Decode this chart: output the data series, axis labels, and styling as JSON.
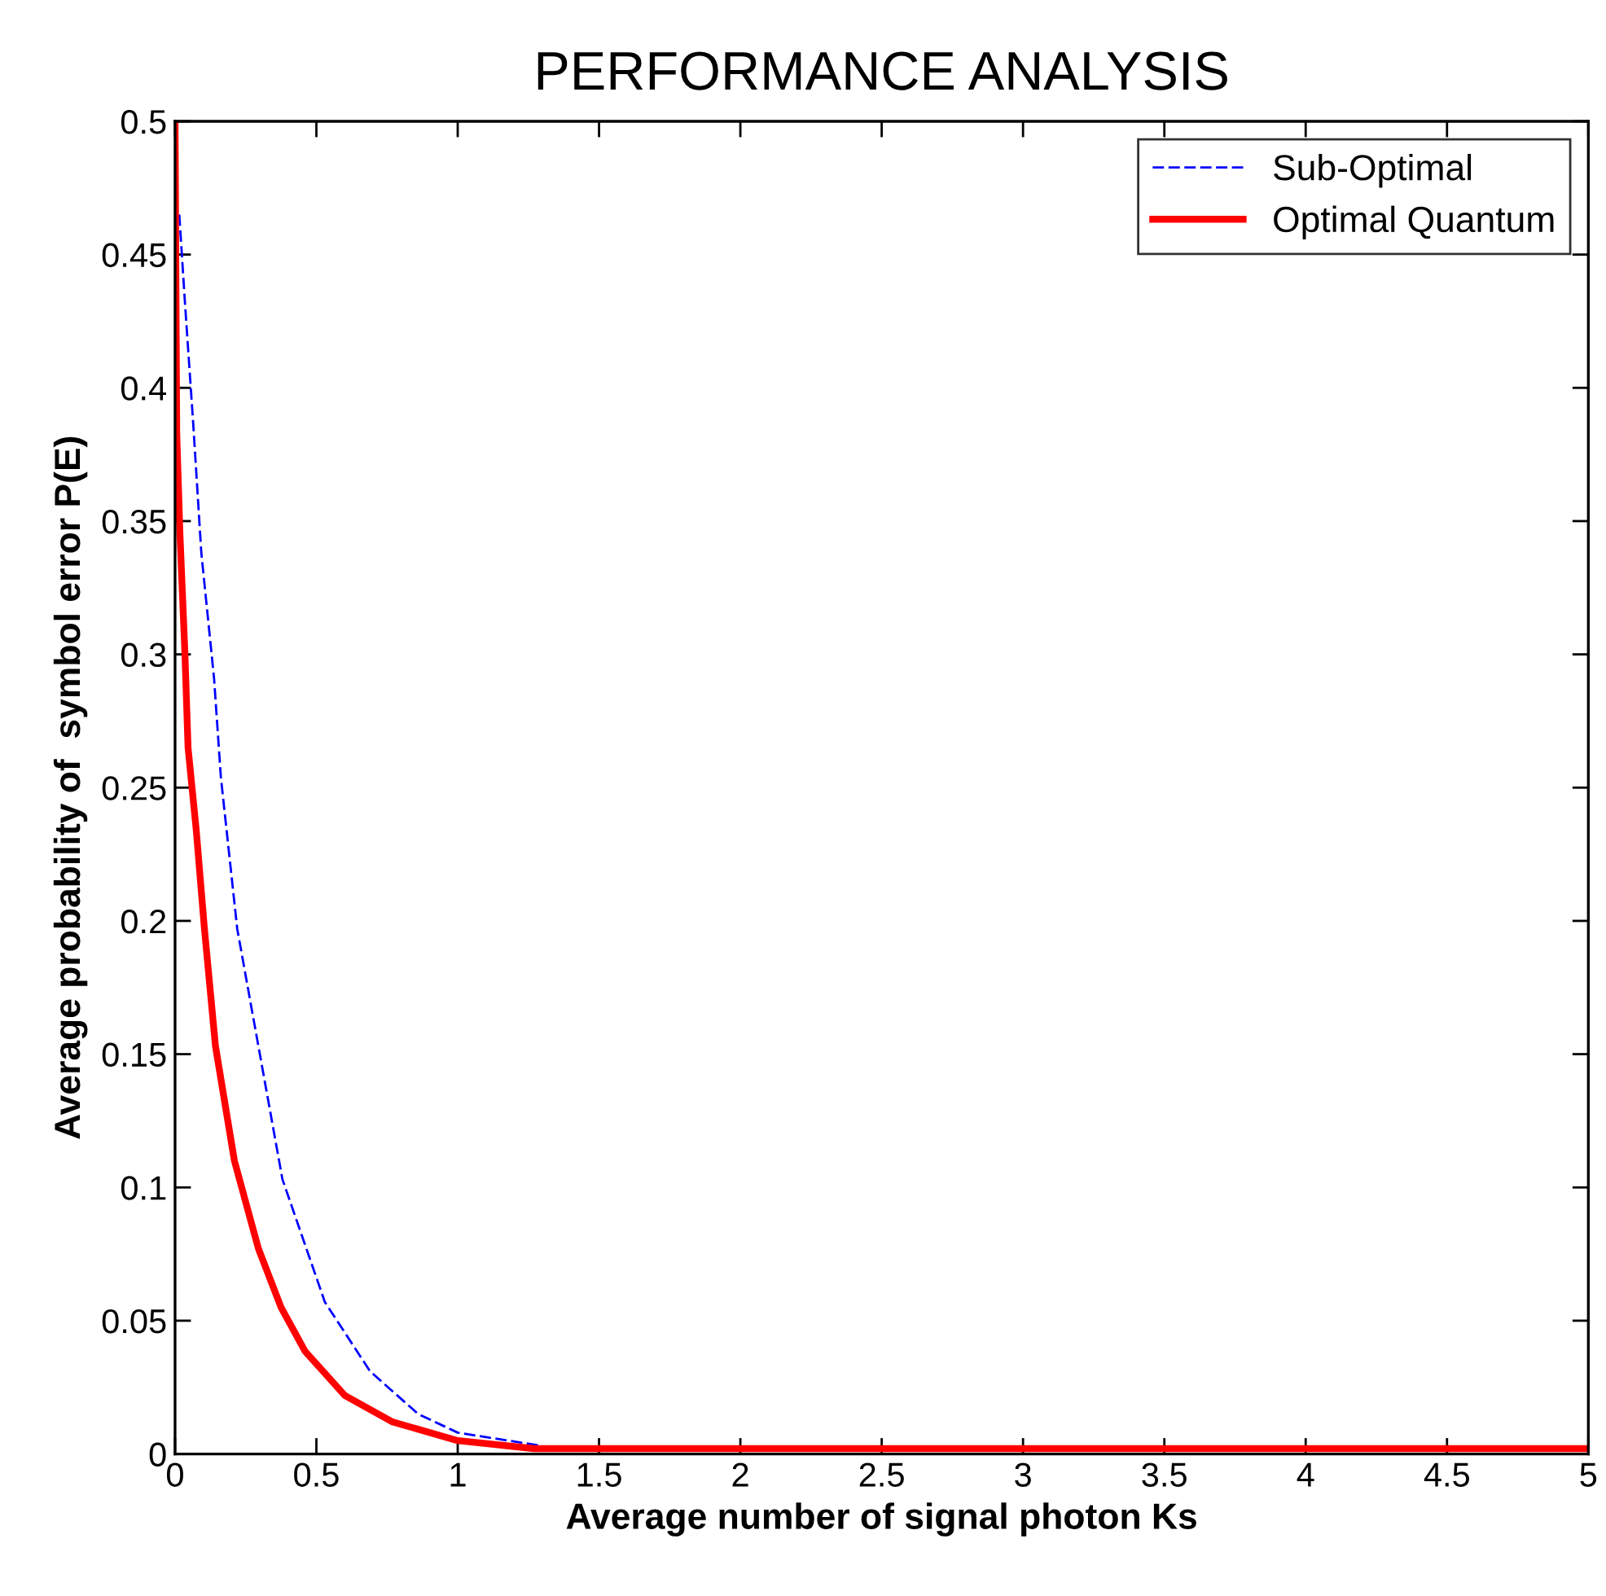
{
  "chart_data": {
    "type": "line",
    "title": "PERFORMANCE ANALYSIS",
    "xlabel": "Average number of signal photon Ks",
    "ylabel": "Average probability of  symbol error P(E)",
    "series": [
      {
        "name": "Sub-Optimal",
        "color": "#0000ff",
        "line_style": "dashed",
        "x": [
          0.015,
          0.035,
          0.064,
          0.093,
          0.138,
          0.162,
          0.22,
          0.3,
          0.38,
          0.53,
          0.69,
          0.86,
          1.0,
          1.18,
          1.3
        ],
        "values": [
          0.465,
          0.432,
          0.387,
          0.338,
          0.291,
          0.254,
          0.197,
          0.15,
          0.103,
          0.057,
          0.031,
          0.015,
          0.008,
          0.005,
          0.003
        ]
      },
      {
        "name": "Optimal Quantum",
        "color": "#ff0000",
        "line_style": "solid",
        "x": [
          0,
          0.006,
          0.017,
          0.035,
          0.046,
          0.075,
          0.104,
          0.143,
          0.21,
          0.295,
          0.375,
          0.46,
          0.6,
          0.77,
          1.0,
          1.27,
          2,
          3,
          4,
          5
        ],
        "values": [
          0.5,
          0.383,
          0.346,
          0.3,
          0.265,
          0.234,
          0.197,
          0.153,
          0.11,
          0.077,
          0.055,
          0.0385,
          0.022,
          0.012,
          0.005,
          0.002,
          0.002,
          0.002,
          0.002,
          0.002
        ]
      }
    ],
    "xlim": [
      0,
      5
    ],
    "xticks": [
      0,
      0.5,
      1,
      1.5,
      2,
      2.5,
      3,
      3.5,
      4,
      4.5,
      5
    ],
    "ylim": [
      0,
      0.5
    ],
    "yticks": [
      0,
      0.05,
      0.1,
      0.15,
      0.2,
      0.25,
      0.3,
      0.35,
      0.4,
      0.45,
      0.5
    ],
    "grid": false,
    "legend": "top right"
  }
}
